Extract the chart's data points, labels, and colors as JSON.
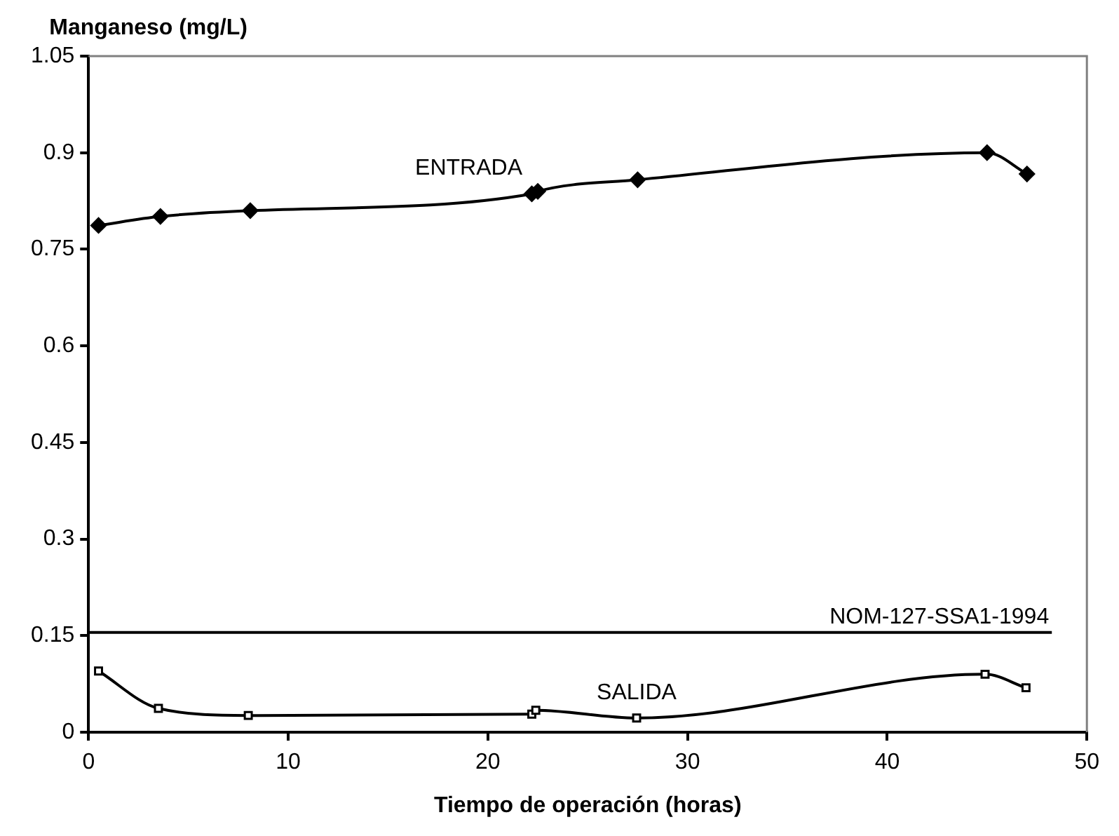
{
  "chart_data": {
    "type": "line",
    "xlabel": "Tiempo de operación (horas)",
    "ylabel": "Manganeso (mg/L)",
    "xlim": [
      0,
      50
    ],
    "xticks": [
      0,
      10,
      20,
      30,
      40,
      50
    ],
    "ylim": [
      0,
      1.05
    ],
    "yticks": [
      0,
      0.15,
      0.3,
      0.45,
      0.6,
      0.75,
      0.9,
      1.05
    ],
    "grid": false,
    "legend": false,
    "line_style": "solid",
    "series": [
      {
        "name": "ENTRADA",
        "color": "#000000",
        "marker": "diamond",
        "x": [
          0.5,
          3.6,
          8.1,
          22.2,
          22.5,
          27.5,
          45.0,
          47.0
        ],
        "values": [
          0.787,
          0.801,
          0.81,
          0.836,
          0.84,
          0.858,
          0.9,
          0.867
        ]
      },
      {
        "name": "SALIDA",
        "color": "#000000",
        "marker": "square",
        "x": [
          0.5,
          3.5,
          8.0,
          22.2,
          22.4,
          27.45,
          44.9,
          46.95
        ],
        "values": [
          0.095,
          0.037,
          0.026,
          0.028,
          0.034,
          0.022,
          0.09,
          0.069
        ]
      }
    ],
    "ref_lines": [
      {
        "axis": "y",
        "value": 0.155,
        "label": "NOM-127-SSA1-1994",
        "color": "#000000",
        "line_style": "solid"
      }
    ]
  }
}
